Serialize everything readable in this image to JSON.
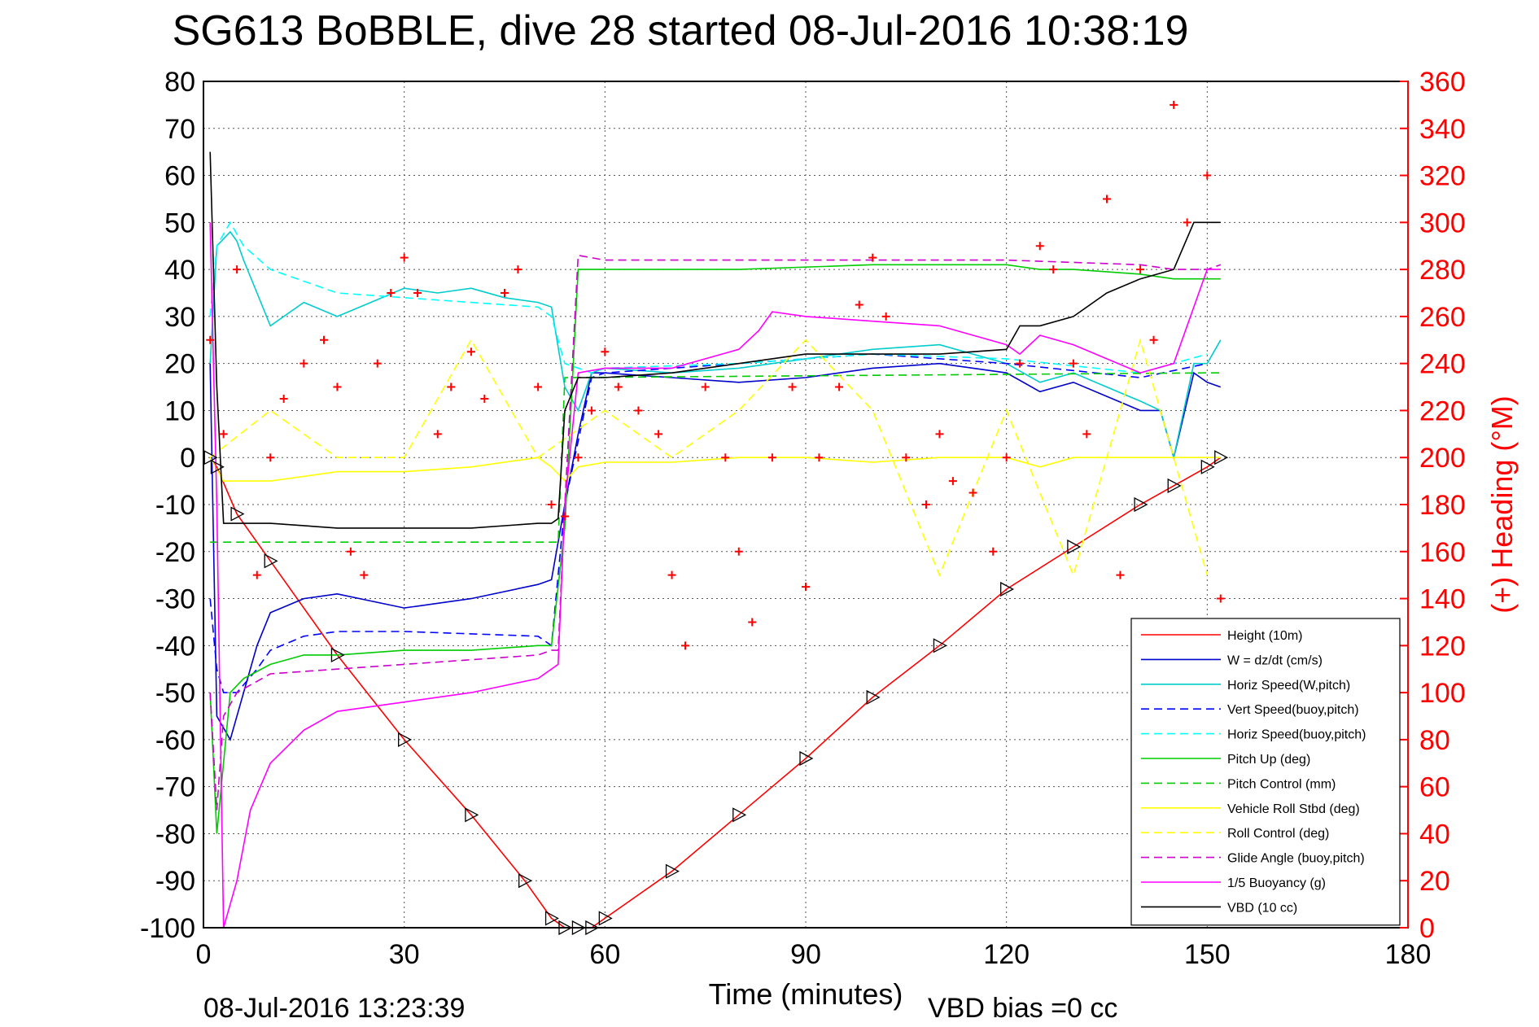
{
  "chart_data": {
    "type": "line",
    "title": "SG613 BoBBLE, dive 28 started 08-Jul-2016 10:38:19",
    "xlabel": "Time (minutes)",
    "ylabel_right": "(+) Heading (°M)",
    "footer_left": "08-Jul-2016 13:23:39",
    "footer_right": "VBD bias =0 cc",
    "xlim": [
      0,
      180
    ],
    "ylim": [
      -100,
      80
    ],
    "ylim_right": [
      0,
      360
    ],
    "xticks": [
      "0",
      "30",
      "60",
      "90",
      "120",
      "150",
      "180"
    ],
    "yticks": [
      "80",
      "70",
      "60",
      "50",
      "40",
      "30",
      "20",
      "10",
      "0",
      "-10",
      "-20",
      "-30",
      "-40",
      "-50",
      "-60",
      "-70",
      "-80",
      "-90",
      "-100"
    ],
    "yticks_right": [
      "360",
      "340",
      "320",
      "300",
      "280",
      "260",
      "240",
      "220",
      "200",
      "180",
      "160",
      "140",
      "120",
      "100",
      "80",
      "60",
      "40",
      "20",
      "0"
    ],
    "grid": true,
    "legend_position": "bottom-right",
    "series": [
      {
        "name": "Height (10m)",
        "color": "#ff0000",
        "style": "solid",
        "x": [
          1,
          2,
          5,
          10,
          20,
          30,
          40,
          48,
          52,
          54,
          56,
          58,
          60,
          70,
          80,
          90,
          100,
          110,
          120,
          130,
          140,
          145,
          150,
          152
        ],
        "y": [
          0,
          -2,
          -12,
          -22,
          -42,
          -60,
          -76,
          -90,
          -98,
          -100,
          -100,
          -100,
          -98,
          -88,
          -76,
          -64,
          -51,
          -40,
          -28,
          -19,
          -10,
          -6,
          -2,
          0
        ]
      },
      {
        "name": "W = dz/dt (cm/s)",
        "color": "#0000cc",
        "style": "solid",
        "x": [
          1,
          2,
          4,
          6,
          8,
          10,
          15,
          20,
          30,
          40,
          50,
          52,
          54,
          56,
          58,
          60,
          70,
          80,
          90,
          100,
          110,
          120,
          125,
          130,
          135,
          140,
          143,
          145,
          148,
          150,
          152
        ],
        "y": [
          20,
          -55,
          -60,
          -50,
          -40,
          -33,
          -30,
          -29,
          -32,
          -30,
          -27,
          -26,
          -10,
          5,
          18,
          18,
          17,
          16,
          17,
          19,
          20,
          18,
          14,
          16,
          13,
          10,
          10,
          0,
          18,
          16,
          15
        ]
      },
      {
        "name": "Horiz Speed(W,pitch)",
        "color": "#00cccc",
        "style": "solid",
        "x": [
          1,
          2,
          4,
          5,
          6,
          8,
          10,
          15,
          20,
          25,
          30,
          35,
          40,
          45,
          50,
          52,
          54,
          56,
          58,
          60,
          70,
          80,
          90,
          100,
          110,
          120,
          125,
          130,
          135,
          140,
          143,
          145,
          148,
          150,
          152
        ],
        "y": [
          20,
          45,
          48,
          46,
          42,
          35,
          28,
          33,
          30,
          33,
          36,
          35,
          36,
          34,
          33,
          32,
          15,
          10,
          18,
          19,
          18,
          19,
          21,
          23,
          24,
          20,
          16,
          18,
          15,
          12,
          10,
          0,
          20,
          20,
          25
        ]
      },
      {
        "name": "Vert Speed(buoy,pitch)",
        "color": "#0000ff",
        "style": "dashed",
        "x": [
          1,
          2,
          3,
          5,
          8,
          10,
          15,
          20,
          30,
          50,
          52,
          54,
          58,
          60,
          80,
          100,
          120,
          140,
          150
        ],
        "y": [
          -30,
          -45,
          -50,
          -50,
          -45,
          -41,
          -38,
          -37,
          -37,
          -38,
          -40,
          -10,
          17,
          18,
          20,
          22,
          20,
          17,
          20
        ]
      },
      {
        "name": "Horiz Speed(buoy,pitch)",
        "color": "#00ffff",
        "style": "dashed",
        "x": [
          1,
          2,
          4,
          6,
          10,
          20,
          30,
          40,
          50,
          52,
          54,
          58,
          60,
          80,
          100,
          120,
          140,
          150
        ],
        "y": [
          30,
          45,
          50,
          45,
          40,
          35,
          34,
          33,
          32,
          30,
          20,
          18,
          19,
          20,
          22,
          21,
          18,
          22
        ]
      },
      {
        "name": "Pitch Up (deg)",
        "color": "#00cc00",
        "style": "solid",
        "x": [
          1,
          2,
          4,
          6,
          10,
          15,
          20,
          30,
          40,
          50,
          52,
          54,
          56,
          58,
          60,
          80,
          100,
          120,
          125,
          130,
          140,
          145,
          150,
          152
        ],
        "y": [
          -50,
          -80,
          -50,
          -47,
          -44,
          -42,
          -42,
          -41,
          -41,
          -40,
          -40,
          -15,
          40,
          40,
          40,
          40,
          41,
          41,
          40,
          40,
          39,
          38,
          38,
          38
        ]
      },
      {
        "name": "Pitch Control (mm)",
        "color": "#00cc00",
        "style": "dashed",
        "x": [
          1,
          2,
          3,
          52,
          53,
          54,
          150,
          152
        ],
        "y": [
          -18,
          -18,
          -18,
          -18,
          -18,
          17,
          18,
          18
        ]
      },
      {
        "name": "Vehicle Roll Stbd (deg)",
        "color": "#ffff00",
        "style": "solid",
        "x": [
          1,
          3,
          5,
          10,
          20,
          30,
          40,
          50,
          52,
          54,
          56,
          60,
          70,
          80,
          90,
          100,
          110,
          120,
          125,
          130,
          140,
          145,
          150,
          152
        ],
        "y": [
          0,
          -5,
          -5,
          -5,
          -3,
          -3,
          -2,
          0,
          -2,
          -5,
          -2,
          -1,
          -1,
          0,
          0,
          -1,
          0,
          0,
          -2,
          0,
          0,
          0,
          0,
          0
        ]
      },
      {
        "name": "Roll Control (deg)",
        "color": "#ffff00",
        "style": "dashed",
        "x": [
          1,
          10,
          20,
          30,
          40,
          50,
          60,
          70,
          80,
          90,
          100,
          110,
          120,
          130,
          140,
          150
        ],
        "y": [
          0,
          10,
          0,
          0,
          25,
          0,
          10,
          0,
          10,
          25,
          10,
          -25,
          10,
          -25,
          25,
          -25
        ]
      },
      {
        "name": "Glide Angle (buoy,pitch)",
        "color": "#cc00cc",
        "style": "dashed",
        "x": [
          1,
          2,
          3,
          5,
          10,
          20,
          30,
          40,
          50,
          52,
          53,
          54,
          56,
          60,
          80,
          100,
          120,
          140,
          145,
          150,
          152
        ],
        "y": [
          -50,
          -75,
          -55,
          -50,
          -46,
          -45,
          -44,
          -43,
          -42,
          -41,
          -41,
          -10,
          43,
          42,
          42,
          42,
          42,
          41,
          40,
          40,
          41
        ]
      },
      {
        "name": "1/5 Buoyancy (g)",
        "color": "#ff00ff",
        "style": "solid",
        "x": [
          1,
          2,
          3,
          5,
          7,
          10,
          15,
          20,
          30,
          40,
          50,
          53,
          54,
          56,
          60,
          70,
          80,
          83,
          85,
          90,
          100,
          110,
          120,
          122,
          125,
          130,
          140,
          145,
          150,
          152
        ],
        "y": [
          50,
          -10,
          -100,
          -90,
          -75,
          -65,
          -58,
          -54,
          -52,
          -50,
          -47,
          -44,
          -10,
          18,
          19,
          19,
          23,
          27,
          31,
          30,
          29,
          28,
          24,
          22,
          26,
          24,
          18,
          20,
          40,
          40
        ]
      },
      {
        "name": "VBD (10 cc)",
        "color": "#000000",
        "style": "solid",
        "x": [
          1,
          2,
          3,
          10,
          20,
          30,
          40,
          50,
          52,
          53,
          54,
          56,
          60,
          70,
          80,
          90,
          100,
          110,
          120,
          122,
          125,
          130,
          135,
          140,
          145,
          148,
          150,
          152
        ],
        "y": [
          65,
          15,
          -14,
          -14,
          -15,
          -15,
          -15,
          -14,
          -14,
          -13,
          10,
          17,
          17,
          18,
          20,
          22,
          22,
          22,
          23,
          28,
          28,
          30,
          35,
          38,
          40,
          50,
          50,
          50
        ]
      },
      {
        "name": "Heading",
        "color": "#ff0000",
        "style": "markers",
        "axis": "right",
        "x": [
          1,
          3,
          5,
          8,
          10,
          12,
          15,
          18,
          20,
          22,
          24,
          26,
          28,
          30,
          32,
          35,
          37,
          40,
          42,
          45,
          47,
          50,
          52,
          54,
          56,
          58,
          60,
          62,
          65,
          68,
          70,
          72,
          75,
          78,
          80,
          82,
          85,
          88,
          90,
          92,
          95,
          98,
          100,
          102,
          105,
          108,
          110,
          112,
          115,
          118,
          120,
          122,
          125,
          127,
          130,
          132,
          135,
          137,
          140,
          142,
          145,
          147,
          150,
          152
        ],
        "y": [
          250,
          210,
          280,
          150,
          200,
          225,
          240,
          250,
          230,
          160,
          150,
          240,
          270,
          285,
          270,
          210,
          230,
          245,
          225,
          270,
          280,
          230,
          180,
          175,
          200,
          220,
          245,
          230,
          220,
          210,
          150,
          120,
          230,
          200,
          160,
          130,
          200,
          230,
          145,
          200,
          230,
          265,
          285,
          260,
          200,
          180,
          210,
          190,
          185,
          160,
          200,
          240,
          290,
          280,
          240,
          210,
          310,
          150,
          280,
          250,
          350,
          300,
          320,
          140
        ]
      }
    ]
  }
}
